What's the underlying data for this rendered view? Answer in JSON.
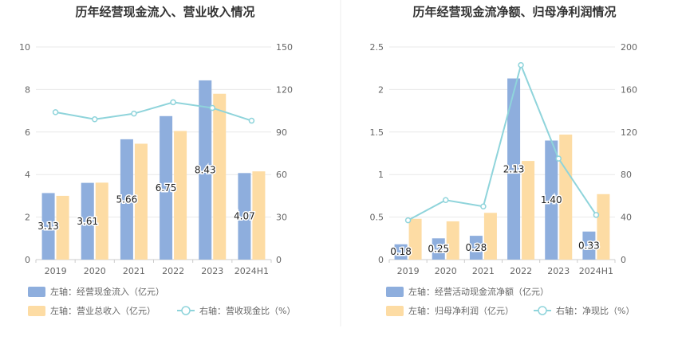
{
  "chart_data": [
    {
      "type": "bar+line",
      "title": "历年经营现金流入、营业收入情况",
      "categories": [
        "2019",
        "2020",
        "2021",
        "2022",
        "2023",
        "2024H1"
      ],
      "left_axis": {
        "min": 0,
        "max": 10,
        "ticks": [
          "0",
          "2",
          "4",
          "6",
          "8",
          "10"
        ]
      },
      "right_axis": {
        "min": 0,
        "max": 150,
        "ticks": [
          "0",
          "30",
          "60",
          "90",
          "120",
          "150"
        ]
      },
      "series": [
        {
          "name": "左轴：经营现金流入（亿元）",
          "kind": "bar",
          "axis": "left",
          "color": "#8eaedd",
          "values": [
            3.13,
            3.61,
            5.66,
            6.75,
            8.43,
            4.07
          ],
          "labels": [
            "3.13",
            "3.61",
            "5.66",
            "6.75",
            "8.43",
            "4.07"
          ]
        },
        {
          "name": "左轴：营业总收入（亿元）",
          "kind": "bar",
          "axis": "left",
          "color": "#fddca4",
          "values": [
            3.0,
            3.62,
            5.45,
            6.05,
            7.8,
            4.15
          ]
        },
        {
          "name": "右轴：营收现金比（%）",
          "kind": "line",
          "axis": "right",
          "color": "#8fd4db",
          "values": [
            104,
            99,
            103,
            111,
            107,
            98
          ]
        }
      ],
      "grid": true,
      "legend": "bottom-left"
    },
    {
      "type": "bar+line",
      "title": "历年经营现金流净额、归母净利润情况",
      "categories": [
        "2019",
        "2020",
        "2021",
        "2022",
        "2023",
        "2024H1"
      ],
      "left_axis": {
        "min": 0,
        "max": 2.5,
        "ticks": [
          "0",
          "0.5",
          "1",
          "1.5",
          "2",
          "2.5"
        ]
      },
      "right_axis": {
        "min": 0,
        "max": 200,
        "ticks": [
          "0",
          "40",
          "80",
          "120",
          "160",
          "200"
        ]
      },
      "series": [
        {
          "name": "左轴：经营活动现金流净额（亿元）",
          "kind": "bar",
          "axis": "left",
          "color": "#8eaedd",
          "values": [
            0.18,
            0.25,
            0.28,
            2.13,
            1.4,
            0.33
          ],
          "labels": [
            "0.18",
            "0.25",
            "0.28",
            "2.13",
            "1.40",
            "0.33"
          ]
        },
        {
          "name": "左轴：归母净利润（亿元）",
          "kind": "bar",
          "axis": "left",
          "color": "#fddca4",
          "values": [
            0.48,
            0.45,
            0.55,
            1.16,
            1.47,
            0.77
          ]
        },
        {
          "name": "右轴：净现比（%）",
          "kind": "line",
          "axis": "right",
          "color": "#8fd4db",
          "values": [
            37,
            56,
            50,
            183,
            95,
            42
          ]
        }
      ],
      "grid": true,
      "legend": "bottom-left"
    }
  ]
}
